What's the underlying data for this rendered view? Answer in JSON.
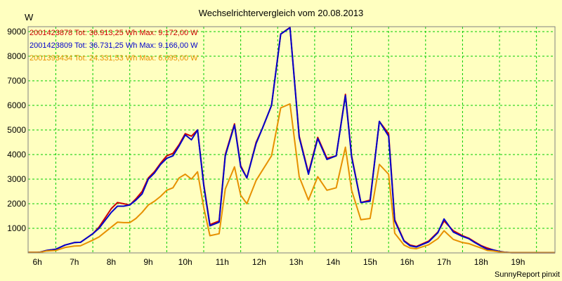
{
  "chart_data": {
    "type": "line",
    "title": "Wechselrichtervergleich vom 20.08.2013",
    "ylabel": "W",
    "xlabel": "",
    "footer": "SunnyReport pinxit",
    "ylim": [
      0,
      9200
    ],
    "xlim": [
      5.75,
      20.0
    ],
    "grid": true,
    "y_ticks": [
      1000,
      2000,
      3000,
      4000,
      5000,
      6000,
      7000,
      8000,
      9000
    ],
    "x_ticks": [
      {
        "value": 6,
        "label": "6h"
      },
      {
        "value": 7,
        "label": "7h"
      },
      {
        "value": 8,
        "label": "8h"
      },
      {
        "value": 9,
        "label": "9h"
      },
      {
        "value": 10,
        "label": "10h"
      },
      {
        "value": 11,
        "label": "11h"
      },
      {
        "value": 12,
        "label": "12h"
      },
      {
        "value": 13,
        "label": "13h"
      },
      {
        "value": 14,
        "label": "14h"
      },
      {
        "value": 15,
        "label": "15h"
      },
      {
        "value": 16,
        "label": "16h"
      },
      {
        "value": 17,
        "label": "17h"
      },
      {
        "value": 18,
        "label": "18h"
      },
      {
        "value": 19,
        "label": "19h"
      }
    ],
    "x": [
      5.75,
      6.0,
      6.083,
      6.25,
      6.5,
      6.75,
      7.0,
      7.167,
      7.5,
      7.667,
      8.0,
      8.167,
      8.333,
      8.5,
      8.667,
      8.833,
      9.0,
      9.167,
      9.333,
      9.5,
      9.667,
      9.833,
      10.0,
      10.167,
      10.333,
      10.5,
      10.667,
      10.917,
      11.083,
      11.333,
      11.5,
      11.667,
      11.917,
      12.083,
      12.333,
      12.583,
      12.833,
      13.083,
      13.333,
      13.583,
      13.833,
      14.083,
      14.333,
      14.5,
      14.75,
      15.0,
      15.25,
      15.5,
      15.667,
      15.917,
      16.083,
      16.25,
      16.583,
      16.833,
      17.0,
      17.25,
      17.5,
      17.667,
      17.833,
      18.0,
      18.167,
      18.333,
      18.5,
      18.667,
      18.833,
      19.0,
      19.25,
      19.5,
      19.667,
      20.0
    ],
    "series": [
      {
        "name": "2001423878",
        "legend": "2001423878 Tot: 36.913,25 Wh Max: 9.172,00 W",
        "color": "#cc0000",
        "values": [
          20,
          20,
          30,
          100,
          150,
          320,
          420,
          430,
          780,
          1050,
          1800,
          2050,
          2000,
          1950,
          2200,
          2500,
          3050,
          3300,
          3650,
          3950,
          4050,
          4400,
          4850,
          4750,
          5000,
          2800,
          1150,
          1300,
          4000,
          5250,
          3550,
          3050,
          4500,
          5050,
          6000,
          8900,
          9170,
          4750,
          3250,
          4700,
          3850,
          3950,
          6450,
          3950,
          2050,
          2150,
          5350,
          4850,
          1350,
          500,
          320,
          260,
          480,
          850,
          1300,
          900,
          700,
          600,
          450,
          300,
          200,
          120,
          60,
          20,
          10,
          10,
          10,
          10,
          10,
          10
        ]
      },
      {
        "name": "2001423809",
        "legend": "2001423809 Tot: 36.731,25 Wh Max: 9.166,00 W",
        "color": "#0000cc",
        "values": [
          20,
          20,
          30,
          100,
          150,
          320,
          420,
          430,
          780,
          1000,
          1650,
          1900,
          1900,
          1950,
          2150,
          2400,
          3000,
          3250,
          3600,
          3850,
          3950,
          4350,
          4800,
          4600,
          5000,
          2750,
          1100,
          1250,
          3950,
          5200,
          3500,
          3050,
          4450,
          5050,
          6000,
          8900,
          9160,
          4700,
          3200,
          4650,
          3800,
          3950,
          6400,
          3900,
          2050,
          2100,
          5350,
          4750,
          1300,
          480,
          290,
          240,
          450,
          820,
          1380,
          850,
          670,
          580,
          420,
          280,
          150,
          120,
          60,
          20,
          10,
          10,
          10,
          10,
          10,
          10
        ]
      },
      {
        "name": "2001393434",
        "legend": "2001393434 Tot: 24.331,53 Wh Max: 6.095,00 W",
        "color": "#e69000",
        "values": [
          20,
          20,
          25,
          80,
          100,
          220,
          280,
          290,
          520,
          650,
          1050,
          1250,
          1230,
          1230,
          1400,
          1650,
          1950,
          2100,
          2300,
          2550,
          2650,
          3050,
          3200,
          3000,
          3300,
          1850,
          700,
          780,
          2600,
          3500,
          2350,
          2000,
          2950,
          3350,
          3950,
          5900,
          6060,
          3100,
          2150,
          3100,
          2550,
          2650,
          4300,
          2550,
          1350,
          1400,
          3600,
          3200,
          800,
          320,
          200,
          170,
          330,
          580,
          900,
          550,
          420,
          380,
          290,
          200,
          100,
          80,
          40,
          15,
          10,
          10,
          10,
          10,
          10,
          10
        ]
      }
    ]
  }
}
